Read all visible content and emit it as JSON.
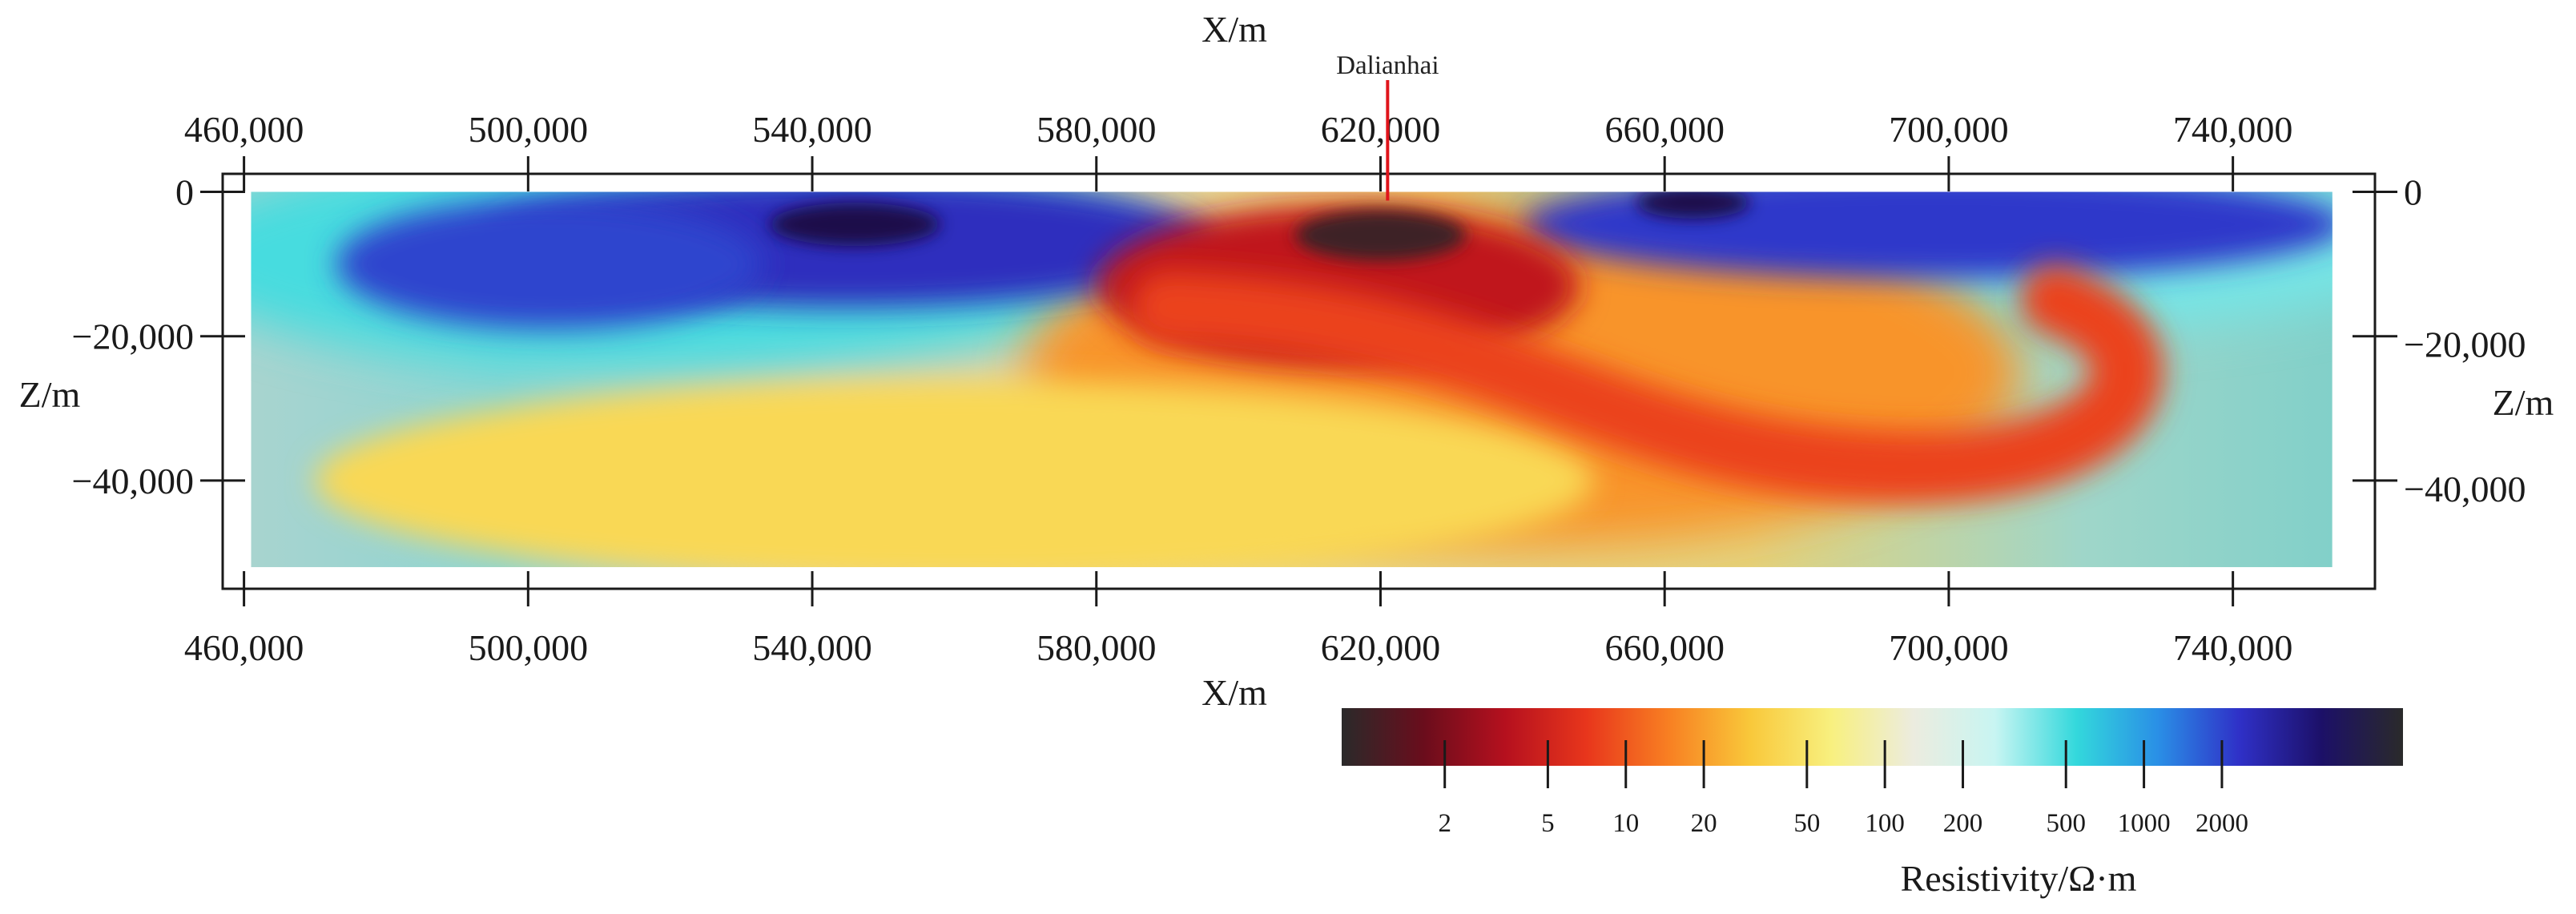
{
  "chart_data": {
    "type": "heatmap",
    "title": "",
    "xlabel": "X/m",
    "ylabel": "Z/m",
    "xlim": [
      457000,
      760000
    ],
    "ylim": [
      -55000,
      2500
    ],
    "data_extent": {
      "x": [
        461000,
        754000
      ],
      "z": [
        -52000,
        0
      ]
    },
    "x_ticks": [
      460000,
      500000,
      540000,
      580000,
      620000,
      660000,
      700000,
      740000
    ],
    "x_tick_labels": [
      "460,000",
      "500,000",
      "540,000",
      "580,000",
      "620,000",
      "660,000",
      "700,000",
      "740,000"
    ],
    "y_ticks": [
      0,
      -20000,
      -40000
    ],
    "y_tick_labels_left": [
      "0",
      "−20,000",
      "−40,000"
    ],
    "y_tick_labels_right": [
      "0",
      "−20,000",
      "−40,000"
    ],
    "grid": false,
    "annotations": [
      {
        "text": "Dalianhai",
        "x": 621000,
        "z_top": 2500,
        "z_bottom": -1200,
        "color": "#e0141b"
      }
    ],
    "colorbar": {
      "title": "Resistivity/Ω·m",
      "scale": "log",
      "range": [
        0.8,
        10000
      ],
      "ticks": [
        2,
        5,
        10,
        20,
        50,
        100,
        200,
        500,
        1000,
        2000
      ],
      "tick_labels": [
        "2",
        "5",
        "10",
        "20",
        "50",
        "100",
        "200",
        "500",
        "1000",
        "2000"
      ],
      "colors": [
        "#2a2a2a",
        "#6a0d1c",
        "#b5101e",
        "#e8361c",
        "#f87f22",
        "#f9c83a",
        "#f8f07f",
        "#ececdf",
        "#c8f5f2",
        "#33d8dc",
        "#2a8fe6",
        "#2f30c7",
        "#1c1068",
        "#2a2a2a"
      ]
    },
    "anomalies": [
      {
        "type": "ellipse",
        "x": 545000,
        "z": -7000,
        "rx": 52000,
        "rz": 9000,
        "resistivity": 2500
      },
      {
        "type": "ellipse",
        "x": 503000,
        "z": -10000,
        "rx": 30000,
        "rz": 9000,
        "resistivity": 2000
      },
      {
        "type": "ellipse",
        "x": 698000,
        "z": -4500,
        "rx": 58000,
        "rz": 7500,
        "resistivity": 2200
      },
      {
        "type": "ellipse",
        "x": 614000,
        "z": -13000,
        "rx": 34000,
        "rz": 11000,
        "resistivity": 4
      },
      {
        "type": "ellipse",
        "x": 620000,
        "z": -6000,
        "rx": 12000,
        "rz": 3500,
        "resistivity": 1
      },
      {
        "type": "band",
        "x": 700000,
        "z": -30000,
        "resistivity": 8
      },
      {
        "type": "ellipse",
        "x": 560000,
        "z": -40000,
        "rx": 90000,
        "rz": 14000,
        "resistivity": 40
      }
    ]
  }
}
